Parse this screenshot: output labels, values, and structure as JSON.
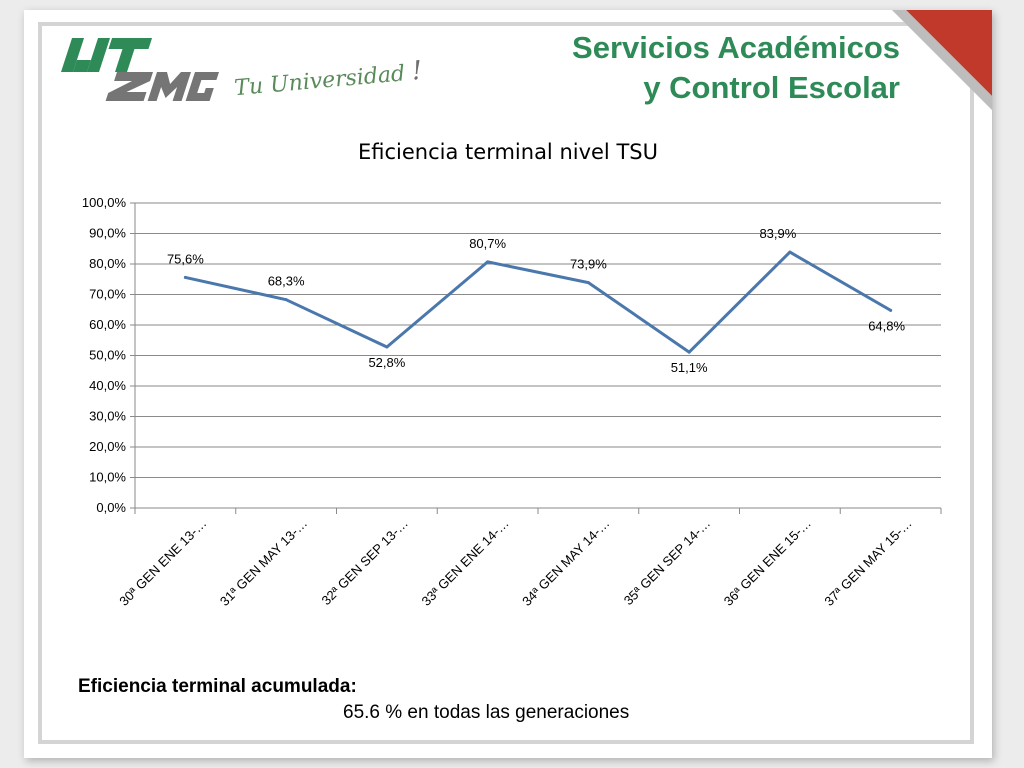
{
  "header": {
    "title_line1": "Servicios Académicos",
    "title_line2": "y Control Escolar",
    "tagline": "Tu Universidad",
    "tagline_mark": "!",
    "logo_text": "UTZMG"
  },
  "chart_data": {
    "type": "line",
    "title": "Eficiencia terminal nivel TSU",
    "categories": [
      "30ª GEN ENE 13-…",
      "31ª GEN MAY 13-…",
      "32ª GEN SEP 13-…",
      "33ª GEN ENE 14-…",
      "34ª GEN MAY 14-…",
      "35ª GEN SEP 14-…",
      "36ª GEN ENE 15-…",
      "37ª GEN MAY 15-…"
    ],
    "values": [
      75.6,
      68.3,
      52.8,
      80.7,
      73.9,
      51.1,
      83.9,
      64.8
    ],
    "data_labels": [
      "75,6%",
      "68,3%",
      "52,8%",
      "80,7%",
      "73,9%",
      "51,1%",
      "83,9%",
      "64,8%"
    ],
    "ylim": [
      0,
      100
    ],
    "yticks": [
      0,
      10,
      20,
      30,
      40,
      50,
      60,
      70,
      80,
      90,
      100
    ],
    "ytick_labels": [
      "0,0%",
      "10,0%",
      "20,0%",
      "30,0%",
      "40,0%",
      "50,0%",
      "60,0%",
      "70,0%",
      "80,0%",
      "90,0%",
      "100,0%"
    ],
    "grid": true,
    "legend": "none",
    "line_color": "#4a78ad"
  },
  "summary": {
    "label": "Eficiencia terminal acumulada:",
    "value": "65.6 %  en todas las generaciones"
  }
}
